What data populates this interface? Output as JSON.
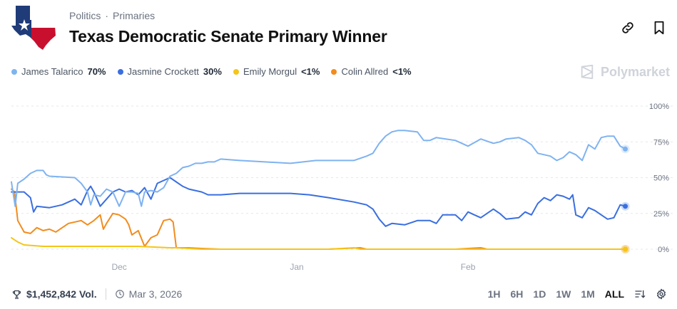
{
  "breadcrumb": {
    "politics": "Politics",
    "separator": "·",
    "primaries": "Primaries"
  },
  "title": "Texas Democratic Senate Primary Winner",
  "icons": {
    "flag": "texas-flag-icon",
    "link": "link-icon",
    "bookmark": "bookmark-icon",
    "trophy": "trophy-icon",
    "clock": "clock-icon",
    "sort": "sort-icon",
    "settings": "gear-icon",
    "brand": "polymarket-logo-icon"
  },
  "watermark": "Polymarket",
  "legend": [
    {
      "name": "James Talarico",
      "pct": "70%",
      "color": "#7fb3f0"
    },
    {
      "name": "Jasmine Crockett",
      "pct": "30%",
      "color": "#3a6fe0"
    },
    {
      "name": "Emily Morgul",
      "pct": "<1%",
      "color": "#f5c518"
    },
    {
      "name": "Colin Allred",
      "pct": "<1%",
      "color": "#f28c1e"
    }
  ],
  "footer": {
    "volume": "$1,452,842 Vol.",
    "date": "Mar 3, 2026"
  },
  "ranges": [
    "1H",
    "6H",
    "1D",
    "1W",
    "1M",
    "ALL"
  ],
  "active_range": "ALL",
  "chart_data": {
    "type": "line",
    "x_range": [
      0,
      100
    ],
    "ylim": [
      0,
      100
    ],
    "y_ticks": [
      {
        "v": 100,
        "label": "100%"
      },
      {
        "v": 75,
        "label": "75%"
      },
      {
        "v": 50,
        "label": "50%"
      },
      {
        "v": 25,
        "label": "25%"
      },
      {
        "v": 0,
        "label": "0%"
      }
    ],
    "x_ticks": [
      {
        "v": 17,
        "label": "Dec"
      },
      {
        "v": 45,
        "label": "Jan"
      },
      {
        "v": 72,
        "label": "Feb"
      }
    ],
    "series": [
      {
        "name": "James Talarico",
        "color": "#7fb3f0",
        "last": 70,
        "points": [
          [
            0,
            47
          ],
          [
            0.6,
            30
          ],
          [
            1,
            46
          ],
          [
            2,
            49
          ],
          [
            3,
            53
          ],
          [
            4,
            55
          ],
          [
            5,
            55
          ],
          [
            5.5,
            52
          ],
          [
            6,
            51
          ],
          [
            10,
            50
          ],
          [
            11,
            46
          ],
          [
            12,
            40
          ],
          [
            12.5,
            31
          ],
          [
            13,
            38
          ],
          [
            14,
            37
          ],
          [
            15,
            42
          ],
          [
            16,
            40
          ],
          [
            17,
            30
          ],
          [
            18,
            40
          ],
          [
            19,
            40
          ],
          [
            20,
            39
          ],
          [
            20.5,
            30
          ],
          [
            21,
            40
          ],
          [
            22,
            41
          ],
          [
            23,
            40
          ],
          [
            24,
            43
          ],
          [
            25,
            51
          ],
          [
            26,
            53
          ],
          [
            27,
            57
          ],
          [
            28,
            58
          ],
          [
            29,
            60
          ],
          [
            30,
            60
          ],
          [
            31,
            61
          ],
          [
            32,
            61
          ],
          [
            33,
            63
          ],
          [
            36,
            62
          ],
          [
            40,
            61
          ],
          [
            44,
            60
          ],
          [
            46,
            61
          ],
          [
            48,
            62
          ],
          [
            50,
            62
          ],
          [
            54,
            62
          ],
          [
            56,
            65
          ],
          [
            57,
            67
          ],
          [
            58,
            74
          ],
          [
            59,
            79
          ],
          [
            60,
            82
          ],
          [
            61,
            83
          ],
          [
            62,
            83
          ],
          [
            64,
            82
          ],
          [
            65,
            76
          ],
          [
            66,
            76
          ],
          [
            67,
            78
          ],
          [
            70,
            76
          ],
          [
            72,
            72
          ],
          [
            74,
            77
          ],
          [
            76,
            74
          ],
          [
            77,
            75
          ],
          [
            78,
            77
          ],
          [
            80,
            78
          ],
          [
            81,
            76
          ],
          [
            82,
            73
          ],
          [
            83,
            67
          ],
          [
            84,
            66
          ],
          [
            85,
            65
          ],
          [
            86,
            62
          ],
          [
            87,
            64
          ],
          [
            88,
            68
          ],
          [
            89,
            66
          ],
          [
            90,
            62
          ],
          [
            91,
            73
          ],
          [
            92,
            70
          ],
          [
            93,
            78
          ],
          [
            94,
            79
          ],
          [
            95,
            79
          ],
          [
            96,
            72
          ],
          [
            96.8,
            70
          ]
        ]
      },
      {
        "name": "Jasmine Crockett",
        "color": "#3a6fe0",
        "last": 30,
        "points": [
          [
            0,
            40
          ],
          [
            1,
            40
          ],
          [
            2,
            40
          ],
          [
            3,
            36
          ],
          [
            3.5,
            26
          ],
          [
            4,
            30
          ],
          [
            6,
            29
          ],
          [
            8,
            31
          ],
          [
            10,
            35
          ],
          [
            11,
            31
          ],
          [
            12,
            41
          ],
          [
            12.5,
            44
          ],
          [
            13,
            40
          ],
          [
            14,
            30
          ],
          [
            15,
            35
          ],
          [
            16,
            40
          ],
          [
            17,
            42
          ],
          [
            18,
            40
          ],
          [
            19,
            41
          ],
          [
            20,
            38
          ],
          [
            21,
            43
          ],
          [
            22,
            35
          ],
          [
            23,
            46
          ],
          [
            24,
            48
          ],
          [
            25,
            50
          ],
          [
            26,
            47
          ],
          [
            27,
            44
          ],
          [
            28,
            42
          ],
          [
            29,
            41
          ],
          [
            30,
            40
          ],
          [
            31,
            38
          ],
          [
            33,
            38
          ],
          [
            36,
            39
          ],
          [
            40,
            39
          ],
          [
            44,
            39
          ],
          [
            47,
            38
          ],
          [
            50,
            36
          ],
          [
            54,
            33
          ],
          [
            56,
            31
          ],
          [
            57,
            28
          ],
          [
            58,
            21
          ],
          [
            59,
            16
          ],
          [
            60,
            18
          ],
          [
            62,
            17
          ],
          [
            64,
            20
          ],
          [
            66,
            20
          ],
          [
            67,
            18
          ],
          [
            68,
            24
          ],
          [
            70,
            24
          ],
          [
            71,
            20
          ],
          [
            72,
            26
          ],
          [
            73,
            24
          ],
          [
            74,
            22
          ],
          [
            76,
            28
          ],
          [
            77,
            25
          ],
          [
            78,
            21
          ],
          [
            80,
            22
          ],
          [
            81,
            26
          ],
          [
            82,
            24
          ],
          [
            83,
            32
          ],
          [
            84,
            36
          ],
          [
            85,
            34
          ],
          [
            86,
            38
          ],
          [
            87,
            37
          ],
          [
            88,
            35
          ],
          [
            88.5,
            38
          ],
          [
            89,
            24
          ],
          [
            90,
            22
          ],
          [
            91,
            29
          ],
          [
            92,
            27
          ],
          [
            93,
            24
          ],
          [
            94,
            21
          ],
          [
            95,
            22
          ],
          [
            96,
            31
          ],
          [
            96.8,
            30
          ]
        ]
      },
      {
        "name": "Emily Morgul",
        "color": "#f5c518",
        "last": 0,
        "points": [
          [
            0,
            8
          ],
          [
            1,
            5
          ],
          [
            2,
            3
          ],
          [
            5,
            2
          ],
          [
            10,
            2
          ],
          [
            15,
            2
          ],
          [
            20,
            2
          ],
          [
            25,
            1
          ],
          [
            26,
            1
          ],
          [
            28,
            0.5
          ],
          [
            30,
            0
          ],
          [
            40,
            0
          ],
          [
            50,
            0
          ],
          [
            54,
            1
          ],
          [
            55,
            0
          ],
          [
            60,
            0
          ],
          [
            70,
            0
          ],
          [
            80,
            0
          ],
          [
            90,
            0
          ],
          [
            96.8,
            0
          ]
        ]
      },
      {
        "name": "Colin Allred",
        "color": "#f28c1e",
        "last": 0,
        "points": [
          [
            0,
            42
          ],
          [
            0.5,
            40
          ],
          [
            1,
            20
          ],
          [
            2,
            12
          ],
          [
            3,
            11
          ],
          [
            4,
            15
          ],
          [
            5,
            13
          ],
          [
            6,
            14
          ],
          [
            7,
            12
          ],
          [
            8,
            15
          ],
          [
            9,
            18
          ],
          [
            10,
            19
          ],
          [
            11,
            20
          ],
          [
            12,
            17
          ],
          [
            13,
            20
          ],
          [
            14,
            24
          ],
          [
            14.5,
            14
          ],
          [
            15,
            18
          ],
          [
            16,
            25
          ],
          [
            17,
            24
          ],
          [
            18,
            21
          ],
          [
            18.5,
            17
          ],
          [
            19,
            10
          ],
          [
            20,
            13
          ],
          [
            21,
            2
          ],
          [
            22,
            8
          ],
          [
            23,
            10
          ],
          [
            24,
            20
          ],
          [
            25,
            21
          ],
          [
            25.5,
            19
          ],
          [
            26,
            1
          ],
          [
            28,
            1
          ],
          [
            30,
            0.5
          ],
          [
            33,
            0
          ],
          [
            40,
            0
          ],
          [
            50,
            0
          ],
          [
            55,
            1
          ],
          [
            56,
            0
          ],
          [
            60,
            0
          ],
          [
            70,
            0
          ],
          [
            74,
            1
          ],
          [
            75,
            0
          ],
          [
            80,
            0
          ],
          [
            90,
            0
          ],
          [
            96.8,
            0
          ]
        ]
      }
    ]
  }
}
